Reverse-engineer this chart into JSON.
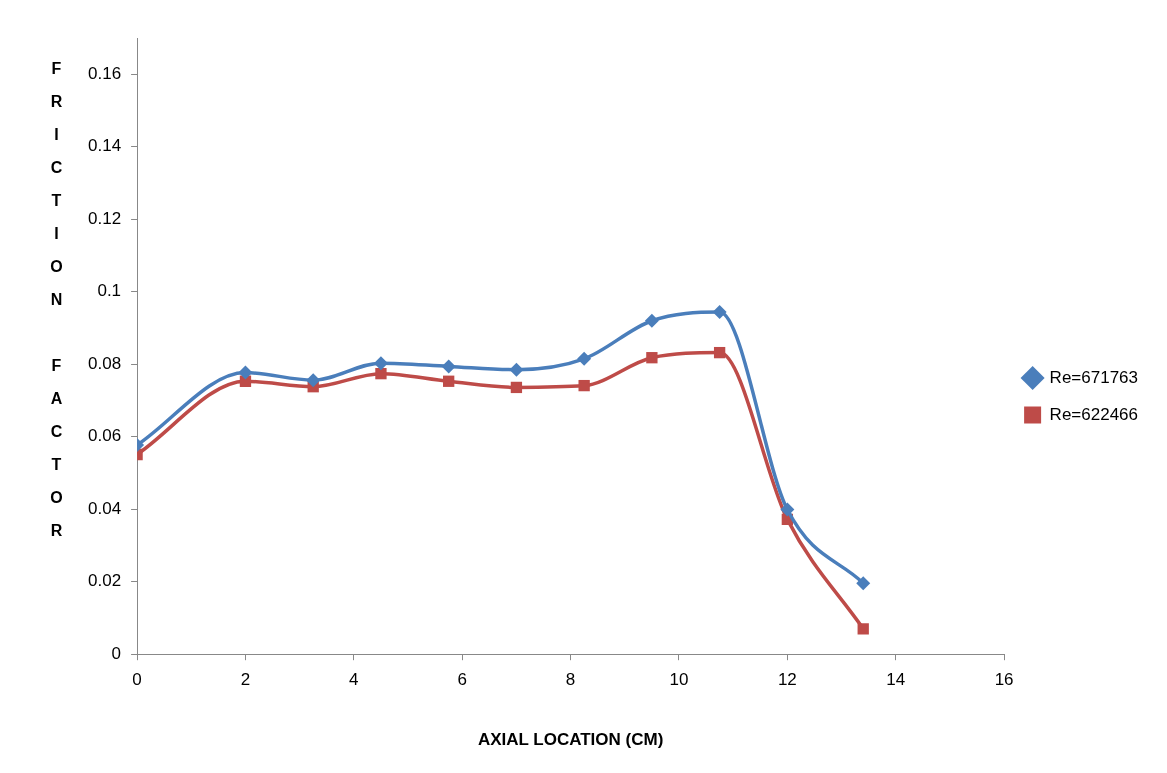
{
  "chart_data": {
    "type": "line",
    "xlabel": "AXIAL LOCATION (CM)",
    "ylabel": "FRICTION FACTOR",
    "x": [
      0,
      2,
      3.25,
      4.5,
      5.75,
      7,
      8.25,
      9.5,
      10.75,
      12,
      13.4
    ],
    "series": [
      {
        "name": "Re=671763",
        "color": "#4a7ebb",
        "marker": "diamond",
        "values": [
          0.0577,
          0.0777,
          0.0756,
          0.0803,
          0.0794,
          0.0785,
          0.0815,
          0.092,
          0.0944,
          0.0399,
          0.0196
        ]
      },
      {
        "name": "Re=622466",
        "color": "#be4b48",
        "marker": "square",
        "values": [
          0.0551,
          0.0753,
          0.0738,
          0.0774,
          0.0753,
          0.0736,
          0.0741,
          0.0818,
          0.0832,
          0.0372,
          0.007
        ]
      }
    ],
    "xlim": [
      0,
      16
    ],
    "xticks": [
      0,
      2,
      4,
      6,
      8,
      10,
      12,
      14,
      16
    ],
    "ylim": [
      0,
      0.17
    ],
    "yticks": [
      0,
      0.02,
      0.04,
      0.06,
      0.08,
      0.1,
      0.12,
      0.14,
      0.16
    ],
    "grid": false,
    "legend": "right"
  }
}
